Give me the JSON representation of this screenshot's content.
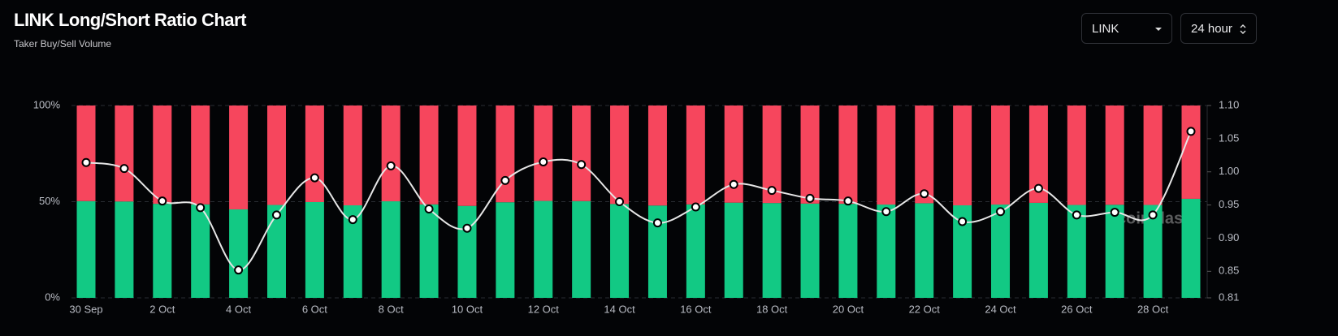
{
  "header": {
    "title": "LINK Long/Short Ratio Chart",
    "subtitle": "Taker Buy/Sell Volume"
  },
  "controls": {
    "symbol": "LINK",
    "period": "24 hour"
  },
  "chart_data": {
    "type": "bar",
    "watermark": "coinglass",
    "categories": [
      "30 Sep",
      null,
      "2 Oct",
      null,
      "4 Oct",
      null,
      "6 Oct",
      null,
      "8 Oct",
      null,
      "10 Oct",
      null,
      "12 Oct",
      null,
      "14 Oct",
      null,
      "16 Oct",
      null,
      "18 Oct",
      null,
      "20 Oct",
      null,
      "22 Oct",
      null,
      "24 Oct",
      null,
      "26 Oct",
      null,
      "28 Oct",
      null
    ],
    "stacked": true,
    "series": [
      {
        "color": "#12c984",
        "values": [
          50.3,
          50.1,
          48.9,
          48.6,
          46.0,
          48.3,
          49.8,
          48.1,
          50.2,
          48.6,
          47.8,
          49.7,
          50.4,
          50.3,
          48.8,
          48.0,
          48.6,
          49.5,
          49.3,
          49.0,
          48.9,
          48.5,
          49.2,
          48.1,
          48.5,
          49.4,
          48.3,
          48.4,
          48.3,
          51.5
        ]
      },
      {
        "color": "#f6465d",
        "values": [
          49.7,
          49.9,
          51.1,
          51.4,
          54.0,
          51.7,
          50.2,
          51.9,
          49.8,
          51.4,
          52.2,
          50.3,
          49.6,
          49.7,
          51.2,
          52.0,
          51.4,
          50.5,
          50.7,
          51.0,
          51.1,
          51.5,
          50.8,
          51.9,
          51.5,
          50.6,
          51.7,
          51.6,
          51.7,
          48.5
        ]
      },
      {
        "type": "line",
        "axis": "y2",
        "color": "#e6e6e6",
        "values": [
          1.014,
          1.005,
          0.956,
          0.946,
          0.852,
          0.935,
          0.991,
          0.928,
          1.009,
          0.944,
          0.915,
          0.987,
          1.015,
          1.011,
          0.955,
          0.923,
          0.947,
          0.981,
          0.972,
          0.96,
          0.956,
          0.94,
          0.967,
          0.925,
          0.94,
          0.975,
          0.935,
          0.939,
          0.935,
          1.061
        ]
      }
    ],
    "ylim": [
      0,
      100
    ],
    "yticks": [
      {
        "value": 0,
        "label": "0%"
      },
      {
        "value": 50,
        "label": "50%"
      },
      {
        "value": 100,
        "label": "100%"
      }
    ],
    "y2lim": [
      0.81,
      1.1
    ],
    "y2ticks": [
      {
        "value": 1.1,
        "label": "1.10"
      },
      1.05,
      {
        "value": 1.0,
        "label": "1.00"
      },
      0.95,
      {
        "value": 0.9,
        "label": "0.90"
      },
      0.85,
      0.81
    ],
    "grid": true
  }
}
